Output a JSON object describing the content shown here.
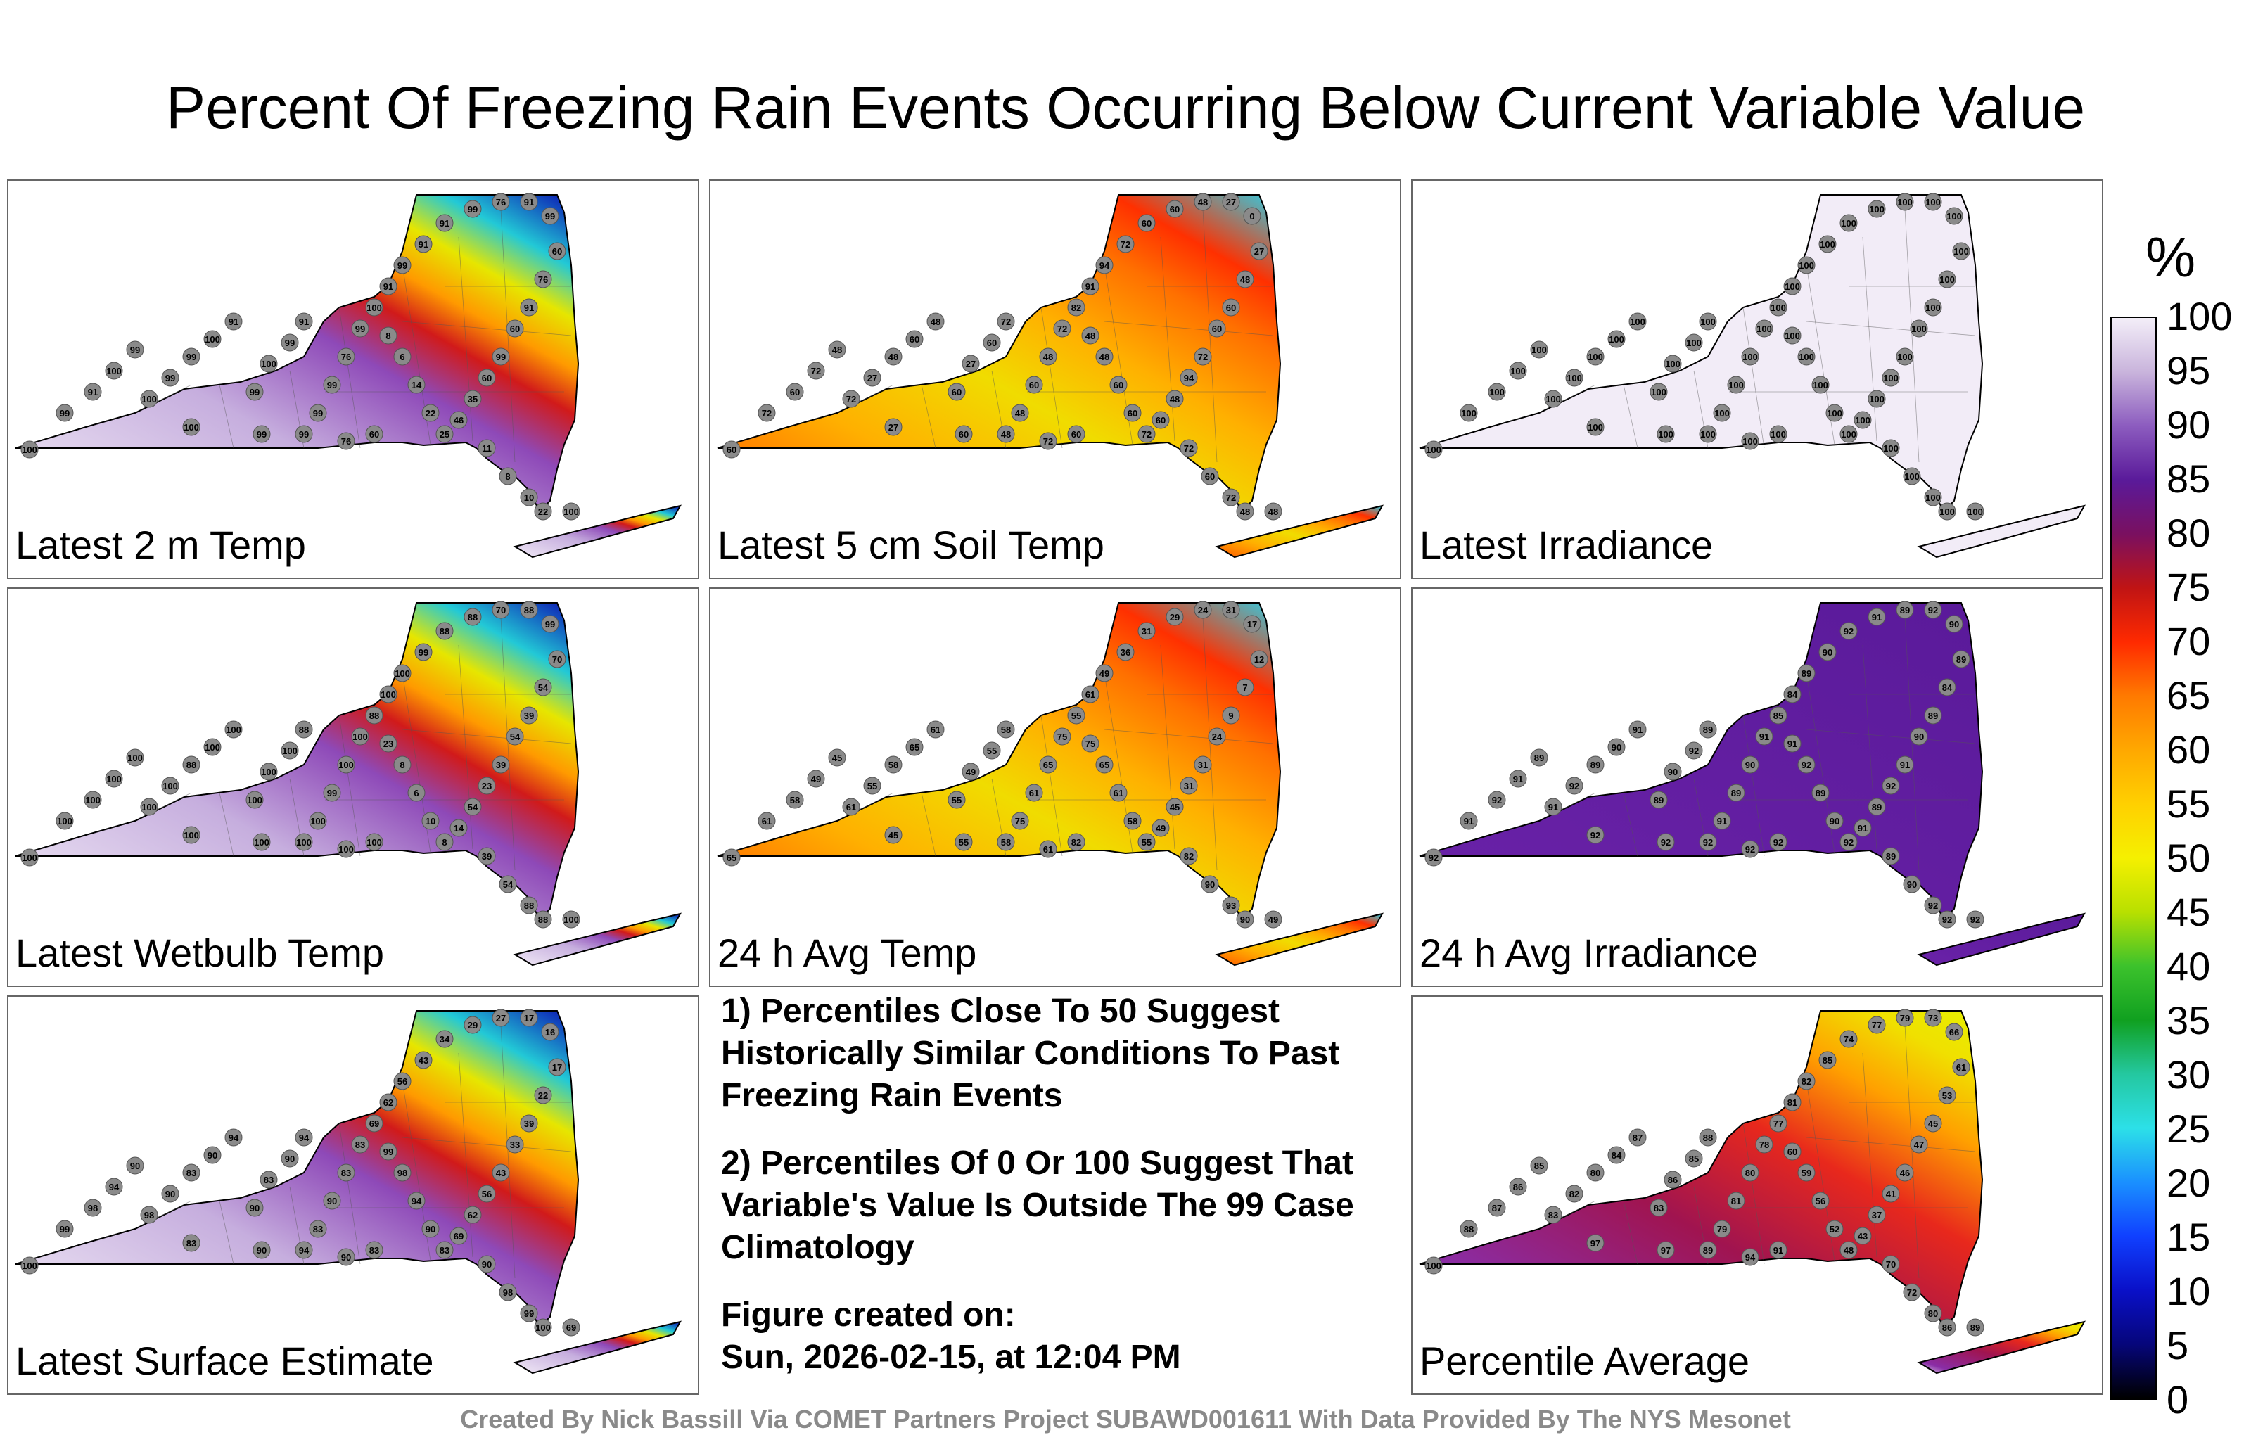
{
  "title": "Percent Of Freezing Rain Events Occurring Below Current Variable Value",
  "panels": [
    {
      "label": "Latest 2 m Temp",
      "style": "purple_west_blue_ne",
      "values": [
        100,
        99,
        91,
        100,
        99,
        100,
        99,
        99,
        100,
        91,
        99,
        100,
        99,
        91,
        99,
        99,
        76,
        99,
        100,
        91,
        99,
        91,
        91,
        99,
        76,
        91,
        99,
        60,
        76,
        91,
        60,
        99,
        60,
        35,
        46,
        25,
        22,
        14,
        6,
        8,
        11,
        8,
        10,
        22,
        60,
        76,
        99,
        99,
        100,
        100
      ]
    },
    {
      "label": "Latest 5 cm Soil Temp",
      "style": "orange_mixed",
      "values": [
        60,
        72,
        60,
        72,
        48,
        72,
        27,
        48,
        60,
        48,
        60,
        27,
        60,
        72,
        48,
        60,
        48,
        72,
        82,
        91,
        94,
        72,
        60,
        60,
        48,
        27,
        0,
        27,
        48,
        60,
        60,
        72,
        94,
        48,
        60,
        72,
        60,
        60,
        48,
        48,
        72,
        60,
        72,
        48,
        60,
        72,
        48,
        60,
        27,
        48
      ]
    },
    {
      "label": "Latest Irradiance",
      "style": "white",
      "values": [
        100,
        100,
        100,
        100,
        100,
        100,
        100,
        100,
        100,
        100,
        100,
        100,
        100,
        100,
        100,
        100,
        100,
        100,
        100,
        100,
        100,
        100,
        100,
        100,
        100,
        100,
        100,
        100,
        100,
        100,
        100,
        100,
        100,
        100,
        100,
        100,
        100,
        100,
        100,
        100,
        100,
        100,
        100,
        100,
        100,
        100,
        100,
        100,
        100,
        100
      ]
    },
    {
      "label": "Latest Wetbulb Temp",
      "style": "purple_west_blue_ne",
      "values": [
        100,
        100,
        100,
        100,
        100,
        100,
        100,
        88,
        100,
        100,
        100,
        100,
        100,
        88,
        100,
        99,
        100,
        100,
        88,
        100,
        100,
        99,
        88,
        88,
        70,
        88,
        99,
        70,
        54,
        39,
        54,
        39,
        23,
        54,
        14,
        8,
        10,
        6,
        8,
        23,
        39,
        54,
        88,
        88,
        100,
        100,
        100,
        100,
        100,
        100
      ]
    },
    {
      "label": "24 h Avg Temp",
      "style": "orange_mixed",
      "values": [
        65,
        61,
        58,
        49,
        45,
        61,
        55,
        58,
        65,
        61,
        55,
        49,
        55,
        58,
        75,
        61,
        65,
        75,
        55,
        61,
        49,
        36,
        31,
        29,
        24,
        31,
        17,
        12,
        7,
        9,
        24,
        31,
        31,
        45,
        49,
        55,
        58,
        61,
        65,
        75,
        82,
        90,
        93,
        90,
        82,
        61,
        58,
        55,
        45,
        49
      ]
    },
    {
      "label": "24 h Avg Irradiance",
      "style": "purple",
      "values": [
        92,
        91,
        92,
        91,
        89,
        91,
        92,
        89,
        90,
        91,
        89,
        90,
        92,
        89,
        91,
        89,
        90,
        91,
        85,
        84,
        89,
        90,
        92,
        91,
        89,
        92,
        90,
        89,
        84,
        89,
        90,
        91,
        92,
        89,
        91,
        92,
        90,
        89,
        92,
        91,
        89,
        90,
        92,
        92,
        92,
        92,
        92,
        92,
        92,
        92
      ]
    },
    {
      "label": "Latest Surface Estimate",
      "style": "purple_west_blue_ne",
      "values": [
        100,
        99,
        98,
        94,
        90,
        98,
        90,
        83,
        90,
        94,
        90,
        83,
        90,
        94,
        83,
        90,
        83,
        83,
        69,
        62,
        56,
        43,
        34,
        29,
        27,
        17,
        16,
        17,
        22,
        39,
        33,
        43,
        56,
        62,
        69,
        83,
        90,
        94,
        98,
        99,
        90,
        98,
        99,
        100,
        83,
        90,
        94,
        90,
        83,
        69
      ]
    },
    {
      "label": "Percentile Average",
      "style": "purple_red_mixed",
      "values": [
        100,
        88,
        87,
        86,
        85,
        83,
        82,
        80,
        84,
        87,
        83,
        86,
        85,
        88,
        79,
        81,
        80,
        78,
        77,
        81,
        82,
        85,
        74,
        77,
        79,
        73,
        66,
        61,
        53,
        45,
        47,
        46,
        41,
        37,
        43,
        48,
        52,
        56,
        59,
        60,
        70,
        72,
        80,
        86,
        91,
        94,
        89,
        97,
        97,
        89
      ]
    }
  ],
  "notes": {
    "note1": "1) Percentiles Close To 50 Suggest Historically Similar Conditions To Past Freezing Rain Events",
    "note2": "2) Percentiles Of 0 Or 100 Suggest That Variable's Value Is Outside The 99 Case Climatology",
    "created_label": "Figure created on:",
    "created_date": "Sun, 2026-02-15, at 12:04 PM"
  },
  "colorbar": {
    "unit": "%",
    "ticks": [
      "100",
      "95",
      "90",
      "85",
      "80",
      "75",
      "70",
      "65",
      "60",
      "55",
      "50",
      "45",
      "40",
      "35",
      "30",
      "25",
      "20",
      "15",
      "10",
      "5",
      "0"
    ]
  },
  "credit": "Created By Nick Bassill Via COMET Partners Project SUBAWD001611 With Data Provided By The NYS Mesonet"
}
